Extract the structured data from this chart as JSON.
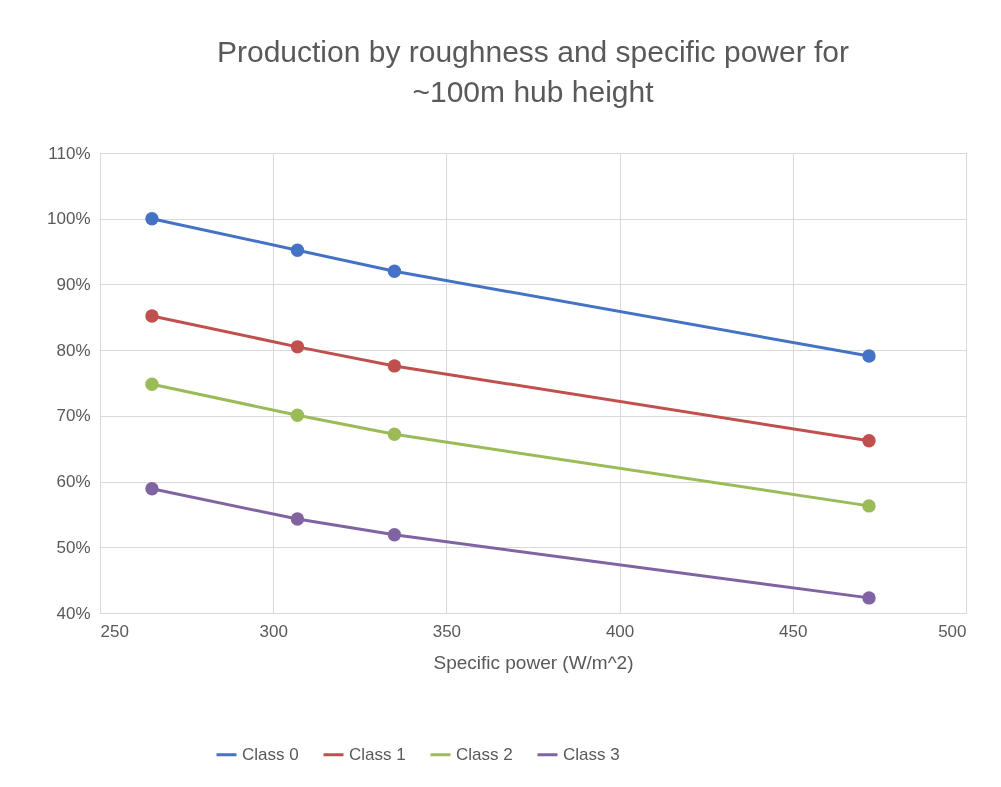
{
  "chart_data": {
    "type": "line",
    "title": "Production by roughness and specific power for ~100m hub height",
    "xlabel": "Specific power (W/m^2)",
    "x": [
      265,
      307,
      335,
      472
    ],
    "series": [
      {
        "name": "Class 0",
        "color": "#4472c4",
        "values": [
          100,
          95.2,
          92.0,
          79.1
        ]
      },
      {
        "name": "Class 1",
        "color": "#c0504d",
        "values": [
          85.2,
          80.5,
          77.6,
          66.2
        ]
      },
      {
        "name": "Class 2",
        "color": "#9bbb59",
        "values": [
          74.8,
          70.1,
          67.2,
          56.3
        ]
      },
      {
        "name": "Class 3",
        "color": "#8064a2",
        "values": [
          58.9,
          54.3,
          51.9,
          42.3
        ]
      }
    ],
    "xlim": [
      250,
      500
    ],
    "xticks": [
      250,
      300,
      350,
      400,
      450,
      500
    ],
    "ylim": [
      40,
      110
    ],
    "yticks": [
      {
        "value": 40,
        "label": "40%"
      },
      {
        "value": 50,
        "label": "50%"
      },
      {
        "value": 60,
        "label": "60%"
      },
      {
        "value": 70,
        "label": "70%"
      },
      {
        "value": 80,
        "label": "80%"
      },
      {
        "value": 90,
        "label": "90%"
      },
      {
        "value": 100,
        "label": "100%"
      },
      {
        "value": 110,
        "label": "110%"
      }
    ],
    "grid": true,
    "legend": "bottom",
    "marker": "circle",
    "line_style": "solid"
  }
}
